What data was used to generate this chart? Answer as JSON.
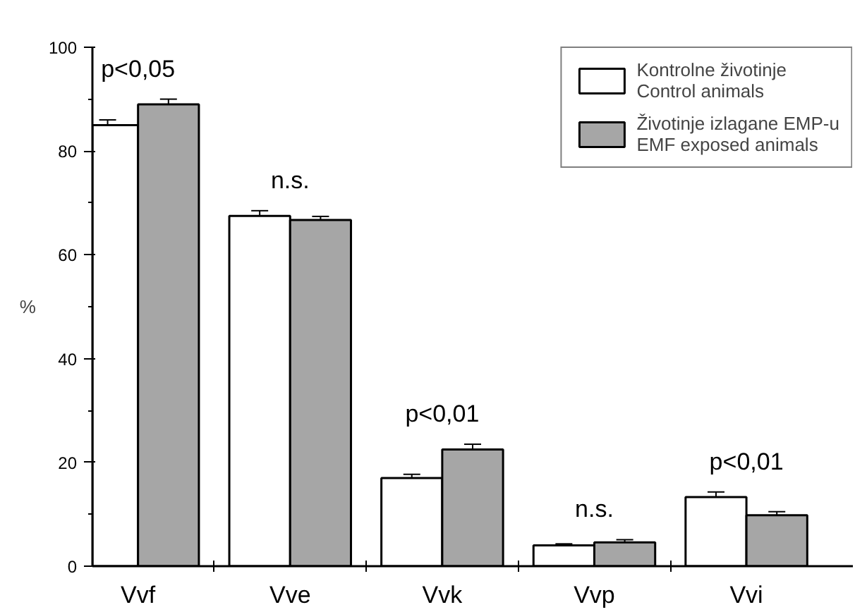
{
  "chart_data": {
    "type": "bar",
    "ylabel": "%",
    "categories": [
      "Vvf",
      "Vve",
      "Vvk",
      "Vvp",
      "Vvi"
    ],
    "series": [
      {
        "name": "Kontrolne životinje\nControl animals",
        "color": "#ffffff",
        "values": [
          85,
          67.5,
          17,
          4,
          13.3
        ],
        "errors": [
          [
            85,
            86
          ],
          [
            67.5,
            68.5
          ],
          [
            17,
            17.7
          ],
          [
            4,
            4.3
          ],
          [
            13.3,
            14.3
          ]
        ]
      },
      {
        "name": "Životinje izlagane EMP-u\nEMF exposed animals",
        "color": "#a6a6a6",
        "values": [
          89,
          66.7,
          22.5,
          4.6,
          9.8
        ],
        "errors": [
          [
            89,
            90
          ],
          [
            66.7,
            67.4
          ],
          [
            22.5,
            23.5
          ],
          [
            4.6,
            5.1
          ],
          [
            9.8,
            10.5
          ]
        ]
      }
    ],
    "ylim": [
      0,
      100
    ],
    "yticks": [
      0,
      20,
      40,
      60,
      80,
      100
    ],
    "grid": false,
    "legend": "top right",
    "annotations": [
      "p<0,05",
      "n.s.",
      "p<0,01",
      "n.s.",
      "p<0,01"
    ]
  }
}
